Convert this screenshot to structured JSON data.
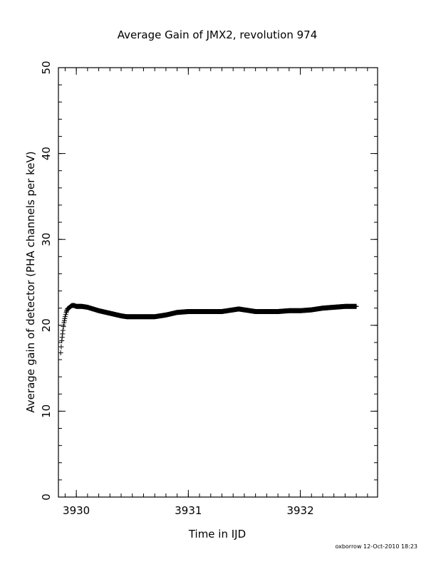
{
  "chart_data": {
    "type": "scatter",
    "title": "Average Gain of JMX2, revolution 974",
    "xlabel": "Time in IJD",
    "ylabel": "Average gain of detector (PHA channels per keV)",
    "xlim": [
      3929.84,
      3932.69
    ],
    "ylim": [
      0,
      50
    ],
    "x_ticks": [
      3930,
      3931,
      3932
    ],
    "x_tick_labels": [
      "3930",
      "3931",
      "3932"
    ],
    "y_ticks": [
      0,
      10,
      20,
      30,
      40,
      50
    ],
    "y_tick_labels": [
      "0",
      "10",
      "20",
      "30",
      "40",
      "50"
    ],
    "x_minor_step": 0.1,
    "y_minor_step": 2,
    "grid": false,
    "legend": "none",
    "marker": "plus",
    "color": "#000000",
    "series": [
      {
        "x": [
          3929.86,
          3929.87,
          3929.88,
          3929.89,
          3929.9,
          3929.91,
          3929.92,
          3929.94,
          3929.96,
          3929.98,
          3930.0,
          3930.05,
          3930.1,
          3930.2,
          3930.3,
          3930.4,
          3930.45,
          3930.5,
          3930.6,
          3930.7,
          3930.8,
          3930.9,
          3931.0,
          3931.1,
          3931.2,
          3931.3,
          3931.4,
          3931.45,
          3931.5,
          3931.6,
          3931.7,
          3931.8,
          3931.9,
          3932.0,
          3932.1,
          3932.2,
          3932.3,
          3932.4,
          3932.5
        ],
        "y": [
          16.8,
          18.2,
          19.4,
          20.3,
          21.0,
          21.5,
          21.9,
          22.1,
          22.3,
          22.3,
          22.2,
          22.2,
          22.1,
          21.7,
          21.4,
          21.1,
          21.0,
          21.0,
          21.0,
          21.0,
          21.2,
          21.5,
          21.6,
          21.6,
          21.6,
          21.6,
          21.8,
          21.9,
          21.8,
          21.6,
          21.6,
          21.6,
          21.7,
          21.7,
          21.8,
          22.0,
          22.1,
          22.2,
          22.2
        ]
      }
    ]
  },
  "footer": {
    "credit": "oxborrow 12-Oct-2010 18:23"
  }
}
